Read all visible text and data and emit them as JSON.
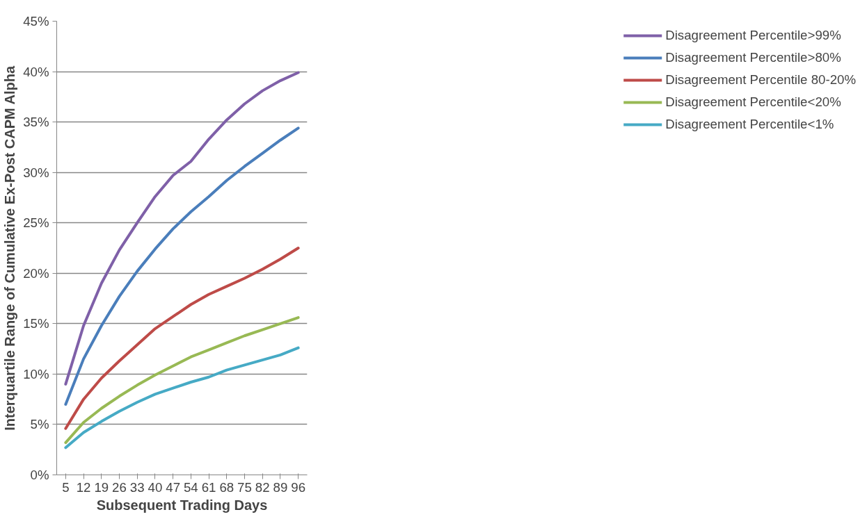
{
  "chart_data": {
    "type": "line",
    "xlabel": "Subsequent Trading Days",
    "ylabel": "Interquartile Range of Cumulative Ex-Post CAPM Alpha",
    "categories": [
      "5",
      "12",
      "19",
      "26",
      "33",
      "40",
      "47",
      "54",
      "61",
      "68",
      "75",
      "82",
      "89",
      "96"
    ],
    "series": [
      {
        "name": "Disagreement Percentile>99%",
        "color": "#7f60a8",
        "values": [
          9.0,
          14.8,
          19.0,
          22.3,
          25.0,
          27.6,
          29.7,
          31.1,
          33.3,
          35.2,
          36.8,
          38.1,
          39.1,
          39.9
        ]
      },
      {
        "name": "Disagreement Percentile>80%",
        "color": "#4a7ebb",
        "values": [
          7.0,
          11.5,
          14.8,
          17.7,
          20.2,
          22.4,
          24.4,
          26.1,
          27.6,
          29.2,
          30.6,
          31.9,
          33.2,
          34.4
        ]
      },
      {
        "name": "Disagreement Percentile 80-20%",
        "color": "#be4b48",
        "values": [
          4.6,
          7.5,
          9.6,
          11.3,
          12.9,
          14.5,
          15.7,
          16.9,
          17.9,
          18.7,
          19.5,
          20.4,
          21.4,
          22.5
        ]
      },
      {
        "name": "Disagreement Percentile<20%",
        "color": "#98b954",
        "values": [
          3.2,
          5.2,
          6.6,
          7.8,
          8.9,
          9.9,
          10.8,
          11.7,
          12.4,
          13.1,
          13.8,
          14.4,
          15.0,
          15.6
        ]
      },
      {
        "name": "Disagreement Percentile<1%",
        "color": "#46aac5",
        "values": [
          2.7,
          4.2,
          5.3,
          6.3,
          7.2,
          8.0,
          8.6,
          9.2,
          9.7,
          10.4,
          10.9,
          11.4,
          11.9,
          12.6
        ]
      }
    ],
    "ylim": [
      0,
      45
    ],
    "yticks": [
      {
        "value": 0,
        "label": "0%"
      },
      {
        "value": 5,
        "label": "5%"
      },
      {
        "value": 10,
        "label": "10%"
      },
      {
        "value": 15,
        "label": "15%"
      },
      {
        "value": 20,
        "label": "20%"
      },
      {
        "value": 25,
        "label": "25%"
      },
      {
        "value": 30,
        "label": "30%"
      },
      {
        "value": 35,
        "label": "35%"
      },
      {
        "value": 40,
        "label": "40%"
      },
      {
        "value": 45,
        "label": "45%"
      }
    ],
    "grid": "y",
    "legend": "right",
    "marker": "none",
    "line_style": "solid"
  }
}
